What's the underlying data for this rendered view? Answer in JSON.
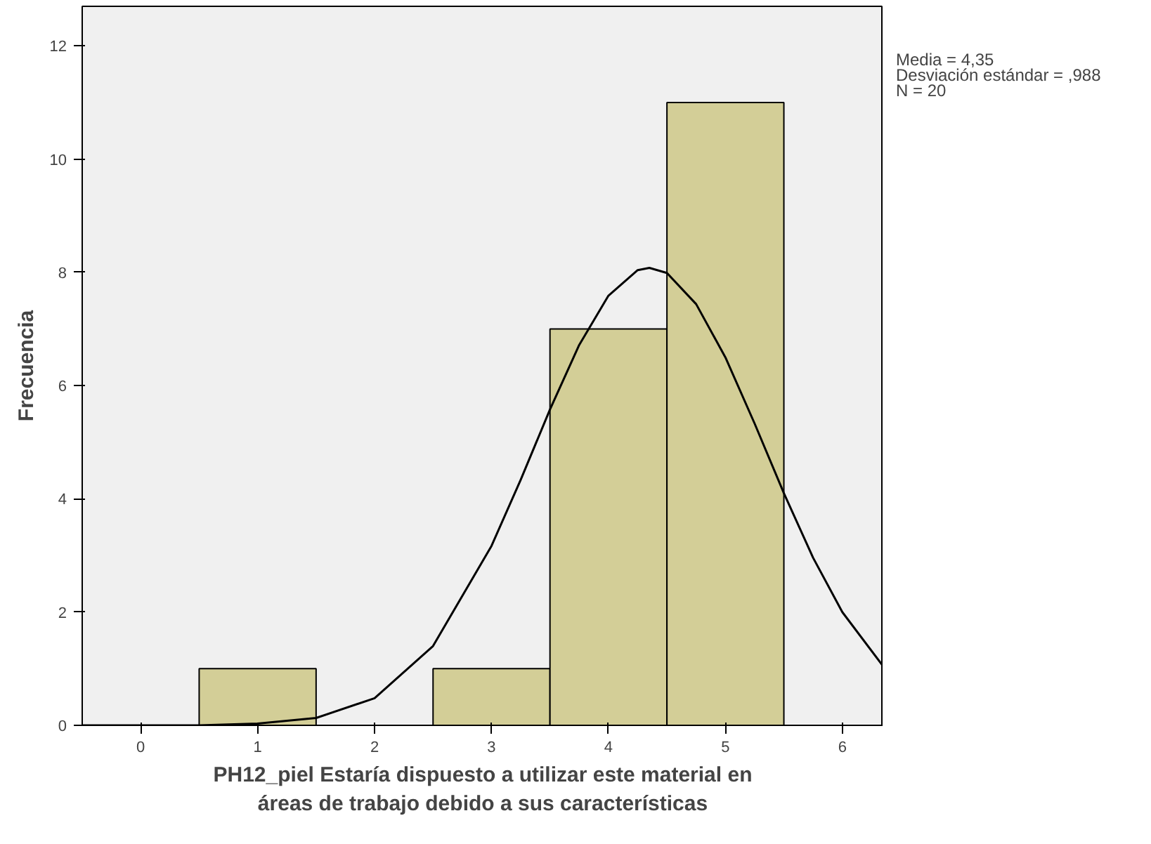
{
  "chart_data": {
    "type": "histogram",
    "xlabel": "PH12_piel Estaría dispuesto a utilizar este material en\náreas de trabajo debido a sus características",
    "ylabel": "Frecuencia",
    "bins": [
      0.5,
      1.5,
      2.5,
      3.5,
      4.5,
      5.5
    ],
    "values": [
      1,
      0,
      1,
      7,
      11
    ],
    "color": "#d3ce97",
    "series": [
      {
        "type": "line",
        "color": "#000000",
        "x": [
          -0.5,
          0,
          0.5,
          1,
          1.5,
          2,
          2.5,
          3,
          3.25,
          3.5,
          3.75,
          4,
          4.25,
          4.35,
          4.5,
          4.75,
          5,
          5.25,
          5.5,
          5.75,
          6,
          6.35
        ],
        "values": [
          0,
          0,
          0,
          0.03,
          0.13,
          0.48,
          1.4,
          3.17,
          4.34,
          5.58,
          6.72,
          7.59,
          8.04,
          8.08,
          7.99,
          7.44,
          6.5,
          5.33,
          4.1,
          2.96,
          2.0,
          1.04
        ]
      }
    ],
    "xlim": [
      -0.5,
      6.35
    ],
    "ylim": [
      0,
      12.7
    ],
    "xticks": [
      0,
      1,
      2,
      3,
      4,
      5,
      6
    ],
    "yticks": [
      0,
      2,
      4,
      6,
      8,
      10,
      12
    ],
    "annotations": [
      "Media = 4,35",
      "Desviación estándar = ,988",
      "N = 20"
    ],
    "grid": false
  }
}
